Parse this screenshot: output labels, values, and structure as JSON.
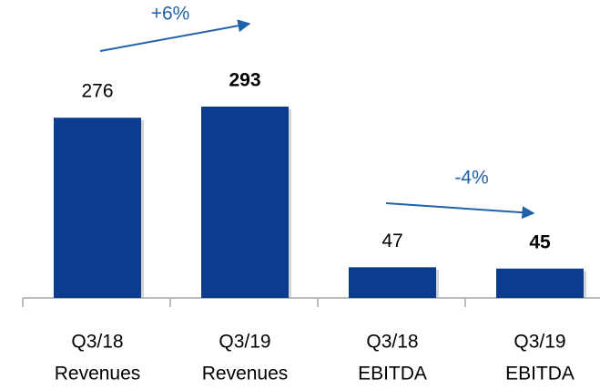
{
  "chart_data": {
    "type": "bar",
    "categories": [
      [
        "Q3/18",
        "Revenues"
      ],
      [
        "Q3/19",
        "Revenues"
      ],
      [
        "Q3/18",
        "EBITDA"
      ],
      [
        "Q3/19",
        "EBITDA"
      ]
    ],
    "values": [
      276,
      293,
      47,
      45
    ],
    "bold_values": [
      false,
      true,
      false,
      true
    ],
    "color": "#0b3c8f",
    "annotations": [
      "+6%",
      "-4%"
    ],
    "annotation_color": "#1f62a8"
  }
}
